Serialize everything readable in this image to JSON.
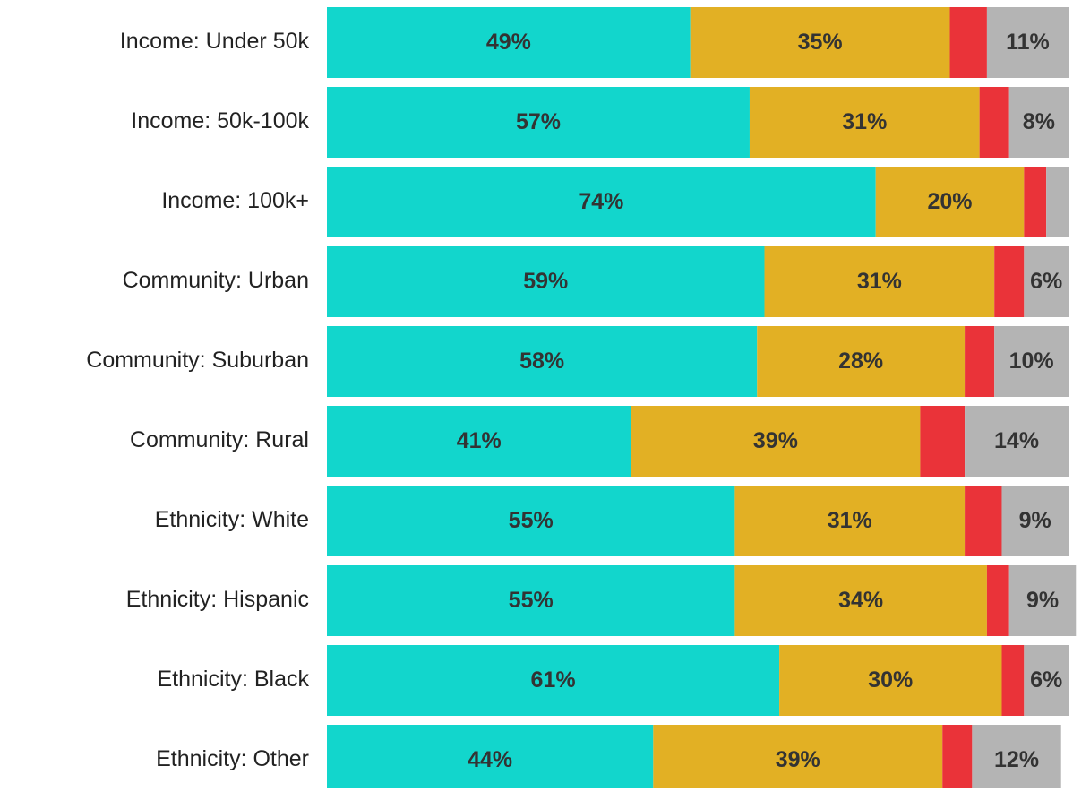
{
  "chart_data": {
    "type": "stacked_barh",
    "categories": [
      "Income: Under 50k",
      "Income: 50k-100k",
      "Income: 100k+",
      "Community: Urban",
      "Community: Suburban",
      "Community: Rural",
      "Ethnicity: White",
      "Ethnicity: Hispanic",
      "Ethnicity: Black",
      "Ethnicity: Other"
    ],
    "xlim": [
      0,
      100
    ],
    "series": [
      {
        "color": "#12d6cc",
        "values": [
          49,
          57,
          74,
          59,
          58,
          41,
          55,
          55,
          61,
          44
        ],
        "value_labels": [
          "49%",
          "57%",
          "74%",
          "59%",
          "58%",
          "41%",
          "55%",
          "55%",
          "61%",
          "44%"
        ]
      },
      {
        "color": "#e2b024",
        "values": [
          35,
          31,
          20,
          31,
          28,
          39,
          31,
          34,
          30,
          39
        ],
        "value_labels": [
          "35%",
          "31%",
          "20%",
          "31%",
          "28%",
          "39%",
          "31%",
          "34%",
          "30%",
          "39%"
        ]
      },
      {
        "color": "#ea3339",
        "values": [
          5,
          4,
          3,
          4,
          4,
          6,
          5,
          3,
          3,
          4
        ]
      },
      {
        "color": "#b4b4b4",
        "values": [
          11,
          8,
          3,
          6,
          10,
          14,
          9,
          9,
          6,
          12
        ],
        "value_labels": [
          "11%",
          "8%",
          null,
          "6%",
          "10%",
          "14%",
          "9%",
          "9%",
          "6%",
          "12%"
        ]
      }
    ]
  }
}
